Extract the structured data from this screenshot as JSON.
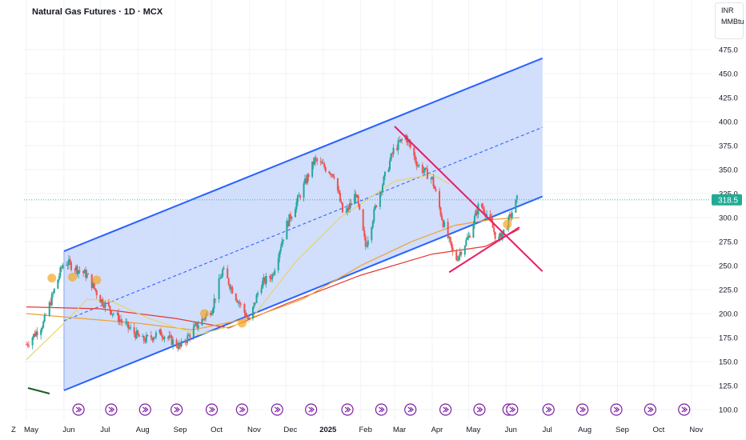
{
  "title": "Natural Gas Futures · 1D · MCX",
  "units": {
    "currency": "INR",
    "measure": "MMBtu"
  },
  "colors": {
    "up": "#26a69a",
    "down": "#ef5350",
    "channel": "#2962ff",
    "channel_fill": "#c9d8fb",
    "triangle": "#e91e63",
    "ma_red": "#e53935",
    "ma_orange": "#f0a030",
    "ma_yellow": "#e8d46a",
    "event": "#7b1fa2",
    "highlight": "#f5a623",
    "price_tag": "#22ab94"
  },
  "last_price": "318.5",
  "chart_data": {
    "type": "candlestick",
    "title": "Natural Gas Futures · 1D · MCX",
    "ylim": [
      100,
      475
    ],
    "yticks": [
      "100.0",
      "125.0",
      "150.0",
      "175.0",
      "200.0",
      "225.0",
      "250.0",
      "275.0",
      "300.0",
      "325.0",
      "350.0",
      "375.0",
      "400.0",
      "425.0",
      "450.0",
      "475.0"
    ],
    "xticks": [
      "May",
      "Jun",
      "Jul",
      "Aug",
      "Sep",
      "Oct",
      "Nov",
      "Dec",
      "2025",
      "Feb",
      "Mar",
      "Apr",
      "May",
      "Jun",
      "Jul",
      "Aug",
      "Sep",
      "Oct",
      "Nov"
    ],
    "xrange": [
      "2024-05-01",
      "2025-11-15"
    ],
    "price_key_points": [
      [
        "2024-05-01",
        168
      ],
      [
        "2024-05-15",
        190
      ],
      [
        "2024-06-01",
        255
      ],
      [
        "2024-06-20",
        240
      ],
      [
        "2024-07-01",
        215
      ],
      [
        "2024-07-20",
        190
      ],
      [
        "2024-08-05",
        172
      ],
      [
        "2024-08-20",
        180
      ],
      [
        "2024-09-05",
        165
      ],
      [
        "2024-09-15",
        182
      ],
      [
        "2024-10-01",
        205
      ],
      [
        "2024-10-10",
        245
      ],
      [
        "2024-10-20",
        220
      ],
      [
        "2024-11-01",
        192
      ],
      [
        "2024-11-10",
        230
      ],
      [
        "2024-11-20",
        240
      ],
      [
        "2024-12-01",
        290
      ],
      [
        "2024-12-15",
        330
      ],
      [
        "2024-12-25",
        360
      ],
      [
        "2025-01-10",
        345
      ],
      [
        "2025-01-18",
        300
      ],
      [
        "2025-01-28",
        325
      ],
      [
        "2025-02-05",
        270
      ],
      [
        "2025-02-15",
        320
      ],
      [
        "2025-02-28",
        370
      ],
      [
        "2025-03-10",
        385
      ],
      [
        "2025-03-20",
        355
      ],
      [
        "2025-04-01",
        340
      ],
      [
        "2025-04-10",
        295
      ],
      [
        "2025-04-20",
        255
      ],
      [
        "2025-05-01",
        280
      ],
      [
        "2025-05-10",
        315
      ],
      [
        "2025-05-18",
        300
      ],
      [
        "2025-05-25",
        275
      ],
      [
        "2025-06-01",
        290
      ],
      [
        "2025-06-10",
        318.5
      ]
    ],
    "channel": {
      "lower": [
        [
          "2024-06-01",
          120
        ],
        [
          "2025-07-01",
          322
        ]
      ],
      "upper": [
        [
          "2024-06-01",
          265
        ],
        [
          "2025-07-01",
          466
        ]
      ],
      "mid": [
        [
          "2024-06-01",
          192.5
        ],
        [
          "2025-07-01",
          394
        ]
      ]
    },
    "triangle": {
      "upper": [
        [
          "2025-03-01",
          395
        ],
        [
          "2025-07-01",
          244
        ]
      ],
      "lower": [
        [
          "2025-04-15",
          243
        ],
        [
          "2025-06-12",
          290
        ]
      ]
    },
    "moving_averages": [
      {
        "color": "#e53935",
        "points": [
          [
            "2024-05-01",
            207
          ],
          [
            "2024-07-01",
            205
          ],
          [
            "2024-09-01",
            195
          ],
          [
            "2024-10-15",
            185
          ],
          [
            "2024-12-01",
            210
          ],
          [
            "2025-02-01",
            240
          ],
          [
            "2025-04-01",
            262
          ],
          [
            "2025-05-15",
            270
          ],
          [
            "2025-06-12",
            288
          ]
        ]
      },
      {
        "color": "#f0a030",
        "points": [
          [
            "2024-05-01",
            200
          ],
          [
            "2024-06-15",
            195
          ],
          [
            "2024-08-01",
            190
          ],
          [
            "2024-09-15",
            183
          ],
          [
            "2024-11-01",
            195
          ],
          [
            "2024-12-15",
            215
          ],
          [
            "2025-02-01",
            250
          ],
          [
            "2025-03-15",
            275
          ],
          [
            "2025-04-20",
            292
          ],
          [
            "2025-05-20",
            298
          ],
          [
            "2025-06-12",
            300
          ]
        ]
      },
      {
        "color": "#e8d46a",
        "points": [
          [
            "2024-05-01",
            152
          ],
          [
            "2024-06-01",
            190
          ],
          [
            "2024-06-20",
            215
          ],
          [
            "2024-07-10",
            213
          ],
          [
            "2024-08-10",
            195
          ],
          [
            "2024-09-20",
            178
          ],
          [
            "2024-11-01",
            192
          ],
          [
            "2024-12-10",
            255
          ],
          [
            "2025-01-15",
            300
          ],
          [
            "2025-03-01",
            338
          ],
          [
            "2025-04-01",
            345
          ],
          [
            "2025-04-15",
            335
          ]
        ]
      }
    ],
    "highlights": [
      [
        "2024-05-22",
        237
      ],
      [
        "2024-06-08",
        238
      ],
      [
        "2024-06-28",
        235
      ],
      [
        "2024-09-25",
        200
      ],
      [
        "2024-10-26",
        190
      ],
      [
        "2025-06-02",
        293
      ]
    ],
    "events": [
      "2024-06-13",
      "2024-07-10",
      "2024-08-07",
      "2024-09-02",
      "2024-10-01",
      "2024-10-26",
      "2024-11-24",
      "2024-12-22",
      "2025-01-21",
      "2025-02-18",
      "2025-03-14",
      "2025-04-12",
      "2025-05-10",
      "2025-06-03",
      "2025-06-06",
      "2025-07-06",
      "2025-08-03",
      "2025-08-31",
      "2025-09-28",
      "2025-10-26"
    ]
  }
}
